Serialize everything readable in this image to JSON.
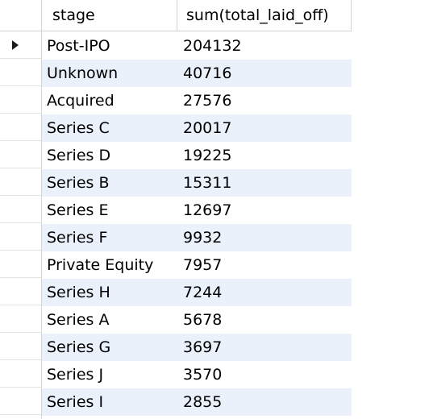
{
  "columns": {
    "stage": "stage",
    "sum": "sum(total_laid_off)"
  },
  "rows": [
    {
      "stage": "Post-IPO",
      "sum": "204132"
    },
    {
      "stage": "Unknown",
      "sum": "40716"
    },
    {
      "stage": "Acquired",
      "sum": "27576"
    },
    {
      "stage": "Series C",
      "sum": "20017"
    },
    {
      "stage": "Series D",
      "sum": "19225"
    },
    {
      "stage": "Series B",
      "sum": "15311"
    },
    {
      "stage": "Series E",
      "sum": "12697"
    },
    {
      "stage": "Series F",
      "sum": "9932"
    },
    {
      "stage": "Private Equity",
      "sum": "7957"
    },
    {
      "stage": "Series H",
      "sum": "7244"
    },
    {
      "stage": "Series A",
      "sum": "5678"
    },
    {
      "stage": "Series G",
      "sum": "3697"
    },
    {
      "stage": "Series J",
      "sum": "3570"
    },
    {
      "stage": "Series I",
      "sum": "2855"
    }
  ],
  "current_row_icon": "current-row-arrow-icon",
  "colors": {
    "alt_row": "#eaf1fb",
    "grid_line": "#d4d4d4"
  }
}
